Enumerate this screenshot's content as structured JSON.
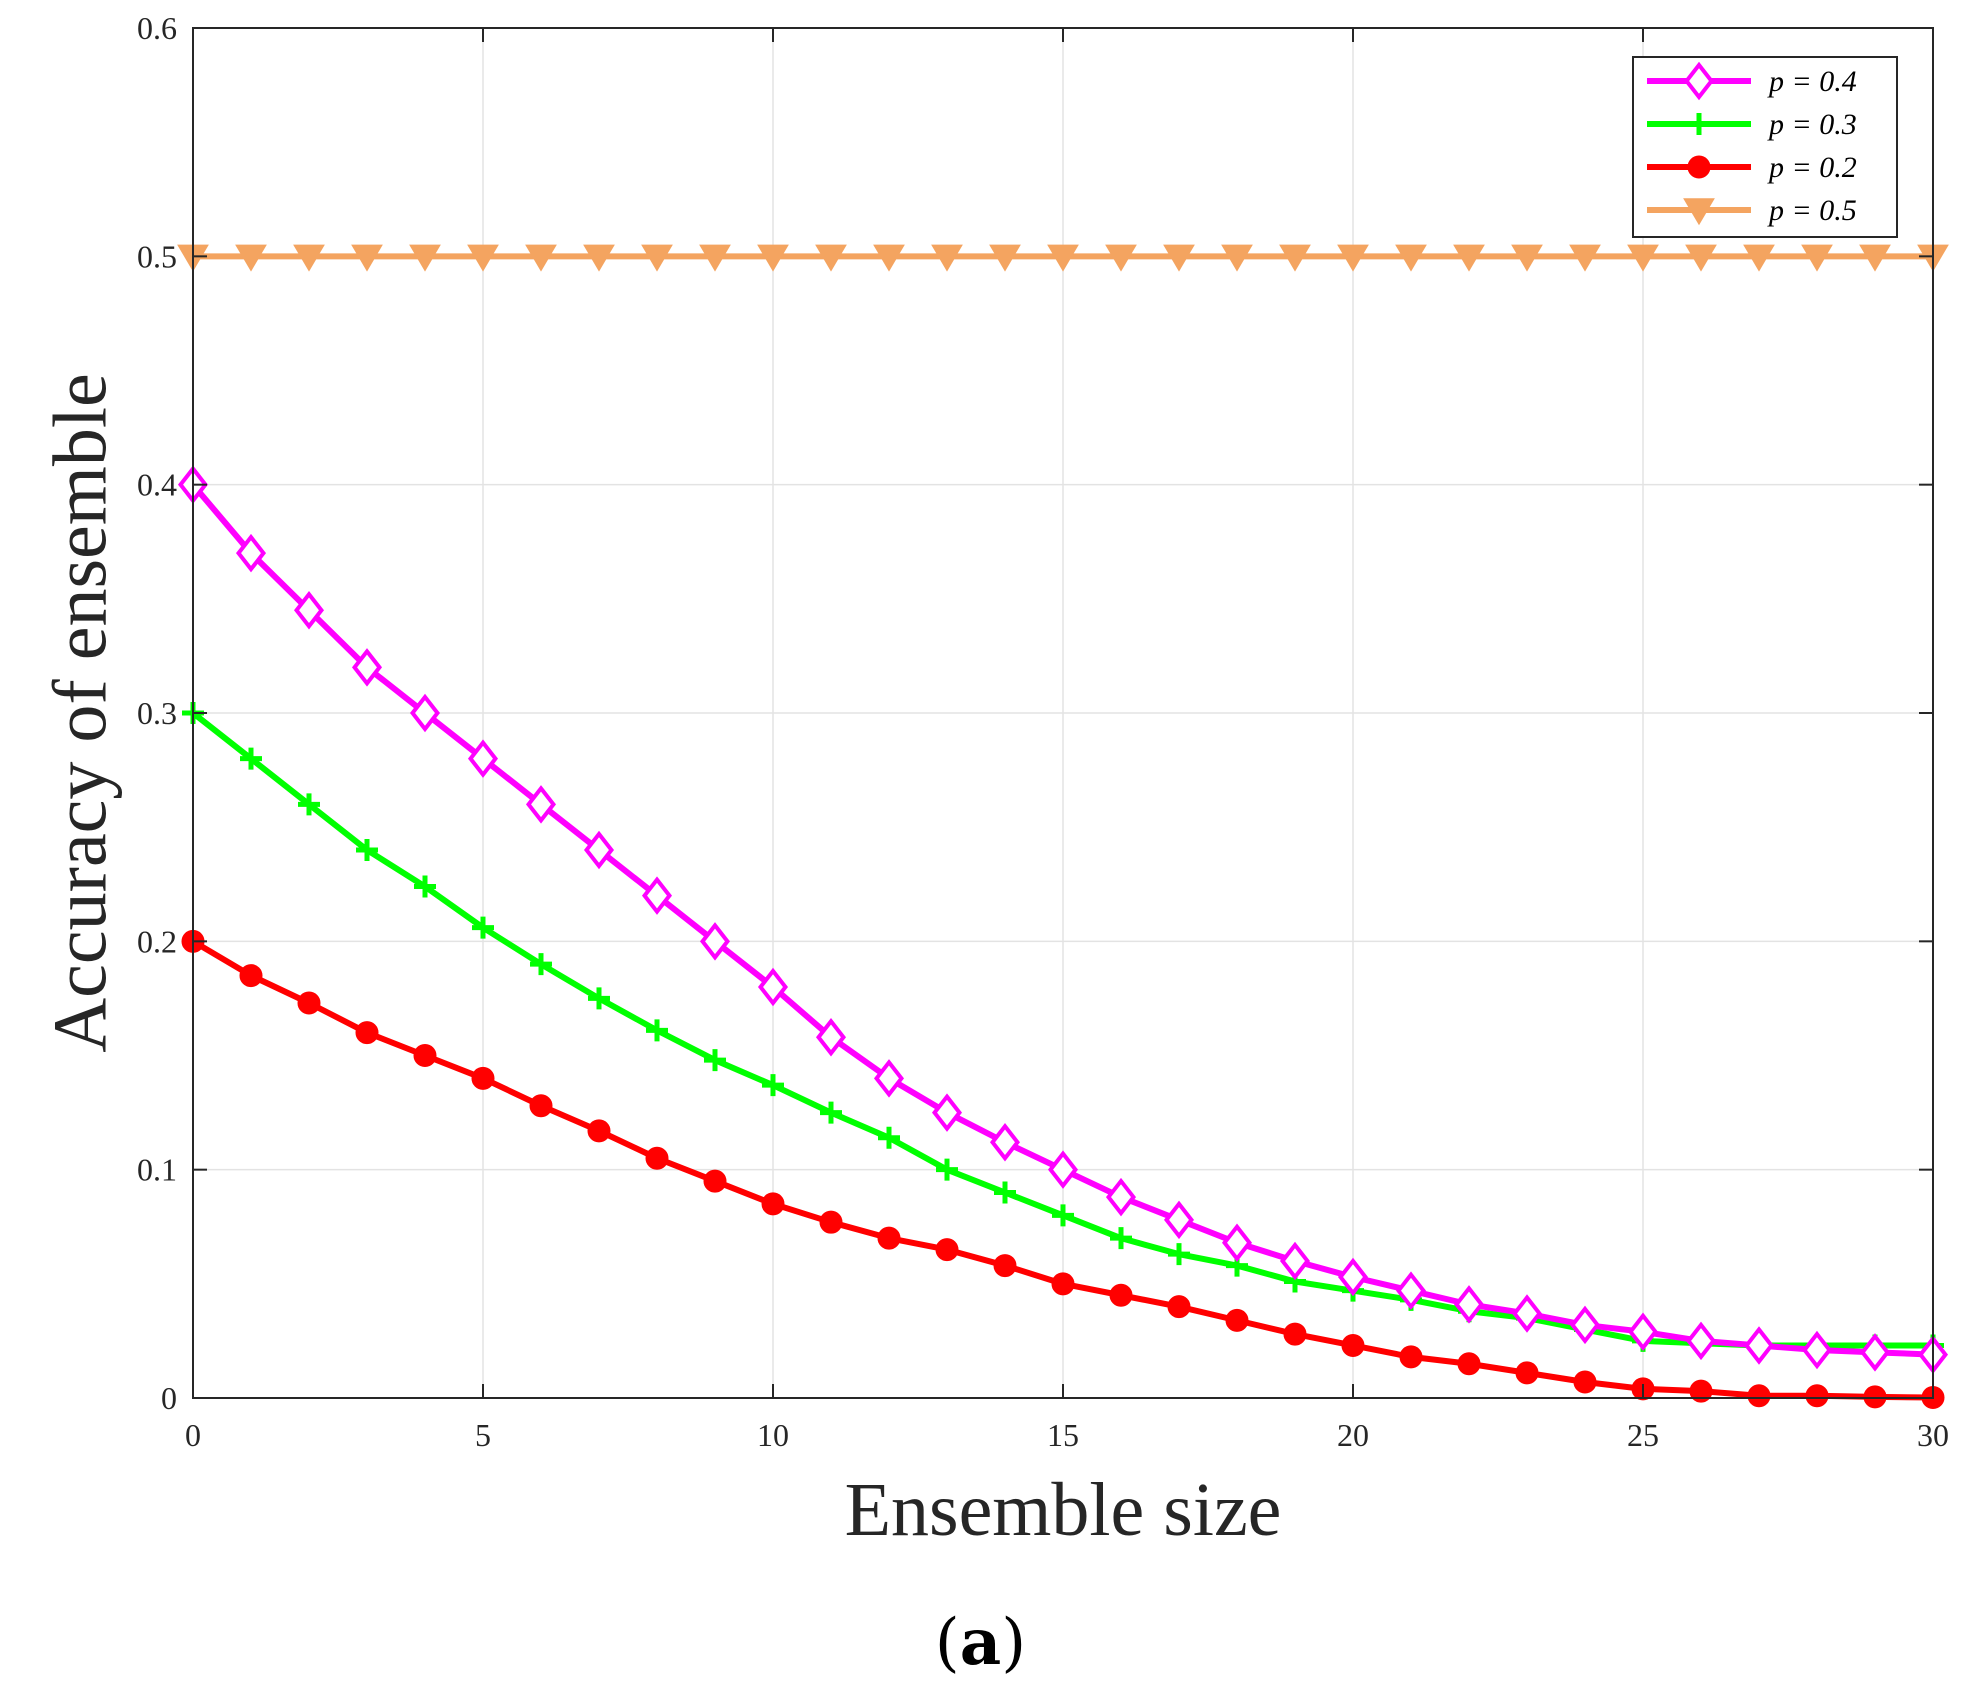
{
  "chart_data": {
    "type": "line",
    "title": "",
    "xlabel": "Ensemble size",
    "ylabel": "Accuracy of ensemble",
    "xlim": [
      0,
      30
    ],
    "ylim": [
      0,
      0.6
    ],
    "xticks": [
      0,
      5,
      10,
      15,
      20,
      25,
      30
    ],
    "yticks": [
      0,
      0.1,
      0.2,
      0.3,
      0.4,
      0.5,
      0.6
    ],
    "xtick_labels": [
      "0",
      "5",
      "10",
      "15",
      "20",
      "25",
      "30"
    ],
    "ytick_labels": [
      "0",
      "0.1",
      "0.2",
      "0.3",
      "0.4",
      "0.5",
      "0.6"
    ],
    "grid": true,
    "legend_position": "top-right",
    "x": [
      0,
      1,
      2,
      3,
      4,
      5,
      6,
      7,
      8,
      9,
      10,
      11,
      12,
      13,
      14,
      15,
      16,
      17,
      18,
      19,
      20,
      21,
      22,
      23,
      24,
      25,
      26,
      27,
      28,
      29,
      30
    ],
    "series": [
      {
        "name": "p = 0.4",
        "color": "#ff00ff",
        "marker": "diamond",
        "values": [
          0.4,
          0.37,
          0.345,
          0.32,
          0.3,
          0.28,
          0.26,
          0.24,
          0.22,
          0.2,
          0.18,
          0.158,
          0.14,
          0.125,
          0.112,
          0.1,
          0.088,
          0.078,
          0.068,
          0.06,
          0.053,
          0.047,
          0.041,
          0.037,
          0.032,
          0.029,
          0.025,
          0.023,
          0.021,
          0.02,
          0.019
        ]
      },
      {
        "name": "p = 0.3",
        "color": "#00ff00",
        "marker": "plus",
        "values": [
          0.3,
          0.28,
          0.26,
          0.24,
          0.224,
          0.206,
          0.19,
          0.175,
          0.161,
          0.148,
          0.137,
          0.125,
          0.114,
          0.1,
          0.09,
          0.08,
          0.07,
          0.063,
          0.058,
          0.051,
          0.047,
          0.043,
          0.038,
          0.035,
          0.03,
          0.025,
          0.024,
          0.023,
          0.023,
          0.023,
          0.023
        ]
      },
      {
        "name": "p = 0.2",
        "color": "#ff0000",
        "marker": "circle",
        "values": [
          0.2,
          0.185,
          0.173,
          0.16,
          0.15,
          0.14,
          0.128,
          0.117,
          0.105,
          0.095,
          0.085,
          0.077,
          0.07,
          0.065,
          0.058,
          0.05,
          0.045,
          0.04,
          0.034,
          0.028,
          0.023,
          0.018,
          0.015,
          0.011,
          0.007,
          0.004,
          0.003,
          0.001,
          0.001,
          0.0005,
          0.0002
        ]
      },
      {
        "name": "p = 0.5",
        "color": "#f4a460",
        "marker": "triangle-down",
        "values": [
          0.5,
          0.5,
          0.5,
          0.5,
          0.5,
          0.5,
          0.5,
          0.5,
          0.5,
          0.5,
          0.5,
          0.5,
          0.5,
          0.5,
          0.5,
          0.5,
          0.5,
          0.5,
          0.5,
          0.5,
          0.5,
          0.5,
          0.5,
          0.5,
          0.5,
          0.5,
          0.5,
          0.5,
          0.5,
          0.5,
          0.5
        ]
      }
    ]
  },
  "caption": {
    "open": "(",
    "letter": "a",
    "close": ")"
  }
}
